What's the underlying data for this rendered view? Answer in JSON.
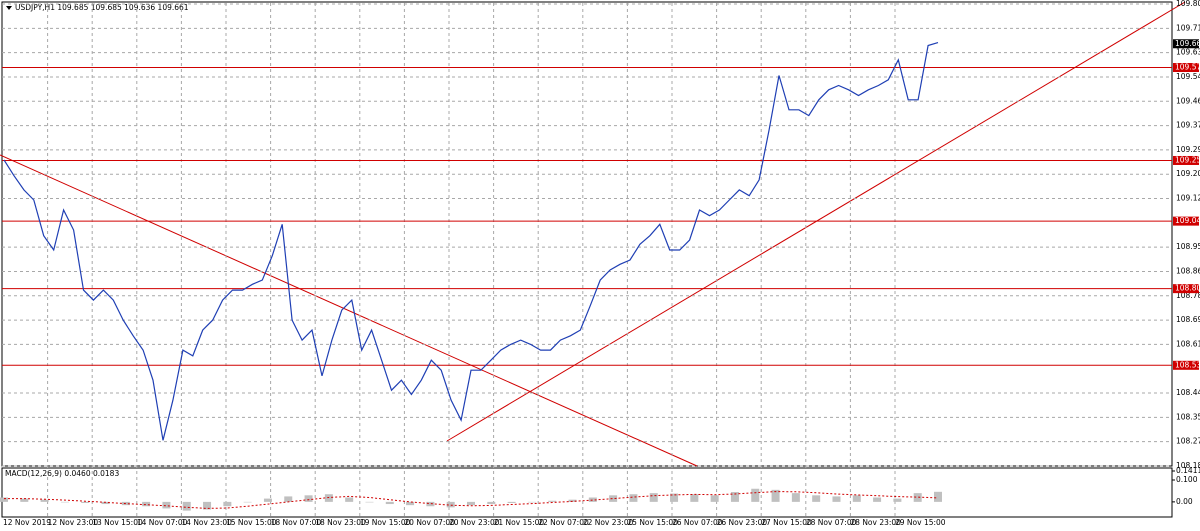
{
  "chart_data": [
    {
      "type": "line",
      "title": "USDJPY,H1  109.685 109.685 109.636 109.661",
      "color": "#1f3fb4",
      "values": [
        109.255,
        109.2,
        109.15,
        109.115,
        108.99,
        108.94,
        109.08,
        109.01,
        108.8,
        108.765,
        108.8,
        108.765,
        108.695,
        108.64,
        108.59,
        108.485,
        108.275,
        108.415,
        108.59,
        108.57,
        108.66,
        108.695,
        108.765,
        108.8,
        108.8,
        108.82,
        108.835,
        108.92,
        109.03,
        108.695,
        108.625,
        108.66,
        108.5,
        108.625,
        108.73,
        108.765,
        108.59,
        108.66,
        108.555,
        108.45,
        108.485,
        108.435,
        108.485,
        108.555,
        108.52,
        108.415,
        108.345,
        108.52,
        108.52,
        108.555,
        108.59,
        108.61,
        108.625,
        108.61,
        108.59,
        108.59,
        108.625,
        108.64,
        108.66,
        108.745,
        108.835,
        108.87,
        108.89,
        108.905,
        108.96,
        108.99,
        109.03,
        108.94,
        108.94,
        108.975,
        109.08,
        109.06,
        109.08,
        109.115,
        109.15,
        109.13,
        109.185,
        109.36,
        109.55,
        109.43,
        109.43,
        109.41,
        109.465,
        109.5,
        109.515,
        109.5,
        109.48,
        109.5,
        109.515,
        109.535,
        109.605,
        109.465,
        109.465,
        109.655,
        109.665
      ],
      "x_labels": [
        "12 Nov 2019",
        "12 Nov 23:00",
        "13 Nov 15:00",
        "14 Nov 07:00",
        "14 Nov 23:00",
        "15 Nov 15:00",
        "18 Nov 07:00",
        "18 Nov 23:00",
        "19 Nov 15:00",
        "20 Nov 07:00",
        "20 Nov 23:00",
        "21 Nov 15:00",
        "22 Nov 07:00",
        "22 Nov 23:00",
        "25 Nov 15:00",
        "26 Nov 07:00",
        "26 Nov 23:00",
        "27 Nov 15:00",
        "28 Nov 07:00",
        "28 Nov 23:00",
        "29 Nov 15:00"
      ],
      "ylim": [
        108.185,
        109.8
      ],
      "yticks": [
        {
          "value": 109.8,
          "label": "109.800"
        },
        109.715,
        {
          "value": 109.63,
          "label": "109.630"
        },
        109.545,
        {
          "value": 109.46,
          "label": "109.460"
        },
        109.375,
        {
          "value": 109.29,
          "label": "109.290"
        },
        109.205,
        {
          "value": 109.12,
          "label": "109.120"
        },
        {
          "value": 108.95,
          "label": "108.950"
        },
        108.865,
        {
          "value": 108.78,
          "label": "108.780"
        },
        108.695,
        {
          "value": 108.61,
          "label": "108.610"
        },
        {
          "value": 108.44,
          "label": "108.440"
        },
        108.355,
        {
          "value": 108.27,
          "label": "108.270"
        },
        108.185
      ],
      "levels": [
        109.578,
        109.253,
        109.041,
        108.805,
        108.537
      ],
      "level_color": "#d00000",
      "last_price": 109.661,
      "grid": true
    },
    {
      "type": "bar",
      "title": "MACD(12,26,9) 0.0460 0.0183",
      "color": "#c0c0c0",
      "values": [
        0.02,
        0.015,
        0.01,
        0.0,
        -0.005,
        -0.01,
        -0.015,
        -0.02,
        -0.03,
        -0.04,
        -0.035,
        -0.02,
        0.0,
        0.015,
        0.025,
        0.03,
        0.035,
        0.02,
        0.0,
        -0.01,
        -0.015,
        -0.02,
        -0.025,
        -0.015,
        -0.01,
        -0.005,
        0.0,
        0.005,
        0.01,
        0.02,
        0.03,
        0.035,
        0.04,
        0.038,
        0.035,
        0.03,
        0.045,
        0.06,
        0.055,
        0.04,
        0.03,
        0.025,
        0.03,
        0.02,
        0.015,
        0.04,
        0.046
      ],
      "signal": [
        0.015,
        0.015,
        0.012,
        0.008,
        0.003,
        -0.002,
        -0.008,
        -0.013,
        -0.018,
        -0.025,
        -0.03,
        -0.028,
        -0.02,
        -0.01,
        0.0,
        0.01,
        0.02,
        0.025,
        0.02,
        0.01,
        0.0,
        -0.008,
        -0.015,
        -0.018,
        -0.016,
        -0.012,
        -0.008,
        -0.003,
        0.002,
        0.008,
        0.015,
        0.022,
        0.028,
        0.032,
        0.034,
        0.033,
        0.036,
        0.042,
        0.047,
        0.046,
        0.042,
        0.036,
        0.032,
        0.028,
        0.024,
        0.022,
        0.0183
      ],
      "signal_color": "#d00000",
      "ylim": [
        -0.06,
        0.1411
      ],
      "yticks": [
        0.1411,
        {
          "value": 0.1,
          "label": "0.100"
        },
        {
          "value": 0,
          "label": "0.00"
        }
      ]
    }
  ]
}
